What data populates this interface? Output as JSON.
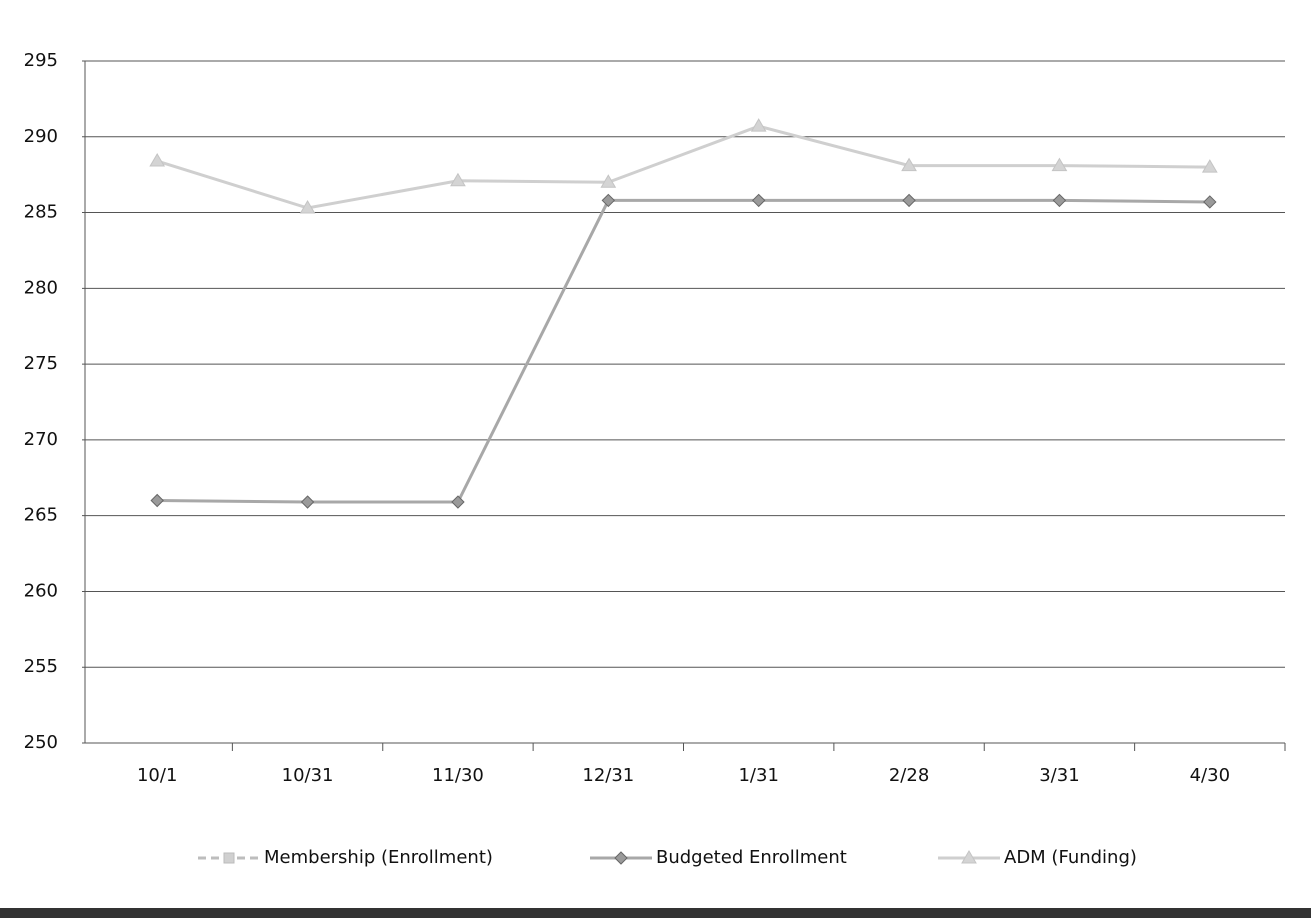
{
  "chart_data": {
    "type": "line",
    "categories": [
      "10/1",
      "10/31",
      "11/30",
      "12/31",
      "1/31",
      "2/28",
      "3/31",
      "4/30"
    ],
    "series": [
      {
        "name": "Membership (Enrollment)",
        "color": "#bdbdbd",
        "marker": "square",
        "dashed": true,
        "values": [
          null,
          null,
          null,
          null,
          null,
          null,
          null,
          null
        ]
      },
      {
        "name": "Budgeted Enrollment",
        "color": "#a8a8a8",
        "marker": "diamond",
        "values": [
          266,
          265.9,
          265.9,
          285.8,
          285.8,
          285.8,
          285.8,
          285.7
        ]
      },
      {
        "name": "ADM (Funding)",
        "color": "#cfcfcf",
        "marker": "triangle",
        "values": [
          288.4,
          285.3,
          287.1,
          287,
          290.7,
          288.1,
          288.1,
          288
        ]
      }
    ],
    "ylim": [
      250,
      295
    ],
    "yticks": [
      250,
      255,
      260,
      265,
      270,
      275,
      280,
      285,
      290,
      295
    ],
    "grid": true,
    "legend": "bottom"
  }
}
